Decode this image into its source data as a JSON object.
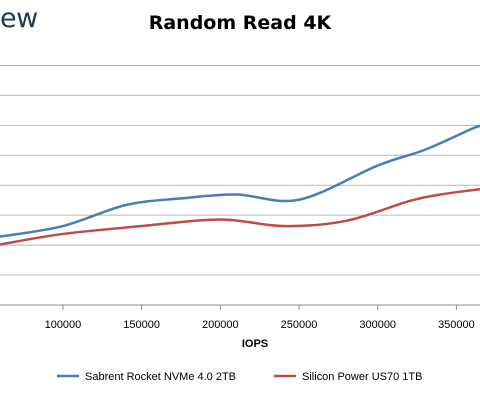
{
  "logo_text": "ew",
  "chart_data": {
    "type": "line",
    "title": "Random Read 4K",
    "xlabel": "IOPS",
    "ylabel": "",
    "xlim": [
      60000,
      365000
    ],
    "ylim": [
      0,
      9.5
    ],
    "x_ticks": [
      100000,
      150000,
      200000,
      250000,
      300000,
      350000
    ],
    "grid": true,
    "legend_position": "bottom",
    "series": [
      {
        "name": "Sabrent Rocket NVMe 4.0 2TB",
        "color": "#4a7ebb",
        "x": [
          60000,
          100000,
          140000,
          175000,
          210000,
          250000,
          300000,
          330000,
          360000,
          365000
        ],
        "y": [
          2.6,
          3.0,
          3.8,
          4.05,
          4.2,
          4.0,
          5.3,
          5.9,
          6.7,
          6.8
        ]
      },
      {
        "name": "Silicon Power US70 1TB",
        "color": "#be4b48",
        "x": [
          60000,
          100000,
          150000,
          200000,
          240000,
          280000,
          320000,
          340000,
          365000
        ],
        "y": [
          2.3,
          2.7,
          3.0,
          3.25,
          3.0,
          3.2,
          3.95,
          4.2,
          4.4
        ]
      }
    ]
  }
}
